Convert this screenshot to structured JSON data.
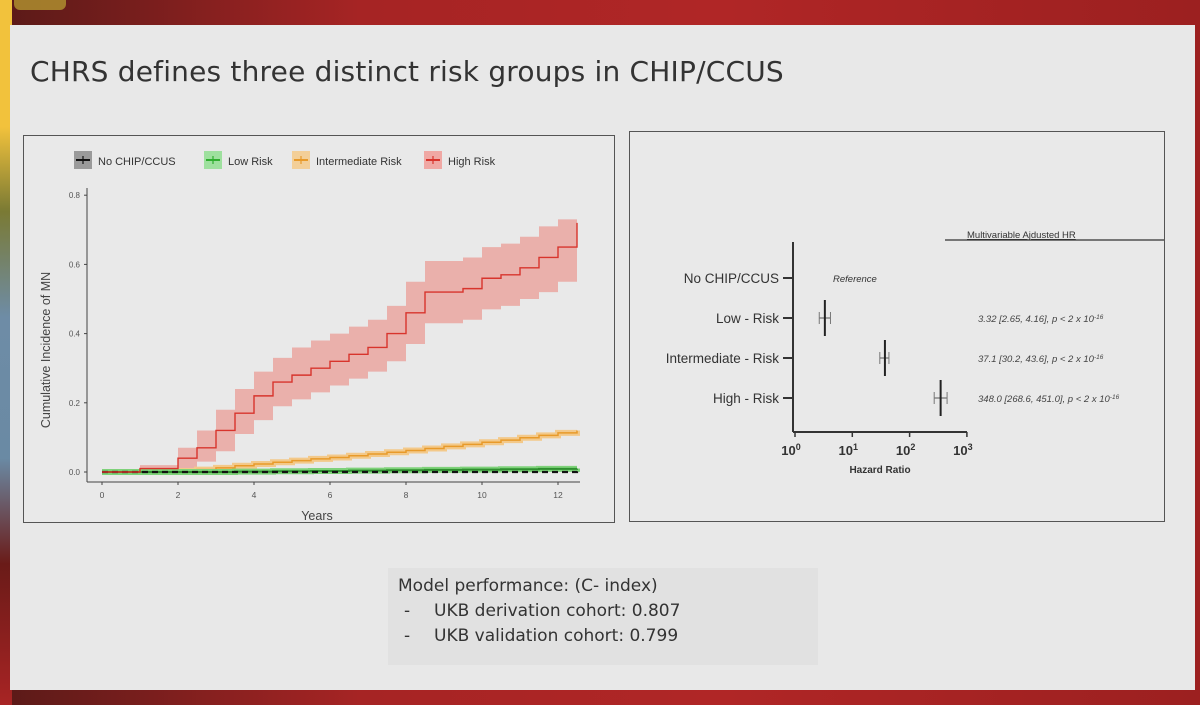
{
  "slide": {
    "title": "CHRS defines three distinct risk groups in CHIP/CCUS",
    "colors": {
      "header_band": "#a62424",
      "slide_bg": "#e8e8e8",
      "no_chip": "#111111",
      "low_risk": "#2fae2f",
      "intermediate_risk": "#e89a2a",
      "high_risk": "#d8342c",
      "high_risk_band": "#eaa6a0"
    }
  },
  "km_chart": {
    "legend": [
      {
        "label": "No CHIP/CCUS",
        "color": "#111111",
        "swatch": "#9a9a9a"
      },
      {
        "label": "Low Risk",
        "color": "#2fae2f",
        "swatch": "#9ee09e"
      },
      {
        "label": "Intermediate Risk",
        "color": "#e89a2a",
        "swatch": "#f3cf98"
      },
      {
        "label": "High Risk",
        "color": "#d8342c",
        "swatch": "#f0a8a4"
      }
    ],
    "xlabel": "Years",
    "ylabel": "Cumulative Incidence of MN",
    "xticks": [
      "0",
      "2",
      "4",
      "6",
      "8",
      "10",
      "12"
    ],
    "yticks": [
      "0.0",
      "0.2",
      "0.4",
      "0.6",
      "0.8"
    ]
  },
  "forest": {
    "header": "Multivariable Ajdusted HR",
    "reference_label": "Reference",
    "xlabel": "Hazard Ratio",
    "xticks": [
      {
        "base": "10",
        "exp": "0"
      },
      {
        "base": "10",
        "exp": "1"
      },
      {
        "base": "10",
        "exp": "2"
      },
      {
        "base": "10",
        "exp": "3"
      }
    ],
    "rows": [
      {
        "label": "No CHIP/CCUS",
        "hr_text": ""
      },
      {
        "label": "Low - Risk",
        "hr_text": "3.32 [2.65, 4.16], p <  2 x 10",
        "p_exp": "-16"
      },
      {
        "label": "Intermediate - Risk",
        "hr_text": "37.1 [30.2, 43.6], p < 2 x 10",
        "p_exp": "-16"
      },
      {
        "label": "High - Risk",
        "hr_text": "348.0 [268.6, 451.0], p < 2 x 10",
        "p_exp": "-16"
      }
    ]
  },
  "performance": {
    "heading": "Model performance: (C- index)",
    "items": [
      {
        "bullet": "-",
        "text": "UKB derivation cohort: 0.807"
      },
      {
        "bullet": "-",
        "text": "UKB validation cohort: 0.799"
      }
    ]
  },
  "chart_data": [
    {
      "type": "line",
      "title": "",
      "xlabel": "Years",
      "ylabel": "Cumulative Incidence of MN",
      "xlim": [
        0,
        12.5
      ],
      "ylim": [
        0,
        0.8
      ],
      "grid": false,
      "legend_position": "top",
      "x": [
        0,
        1,
        1.8,
        2,
        2.5,
        3,
        3.5,
        4,
        4.5,
        5,
        5.5,
        6,
        6.5,
        7,
        7.5,
        8,
        8.5,
        9,
        9.5,
        10,
        10.5,
        11,
        11.5,
        12,
        12.5
      ],
      "series": [
        {
          "name": "No CHIP/CCUS",
          "values": [
            0,
            0,
            0,
            0,
            0,
            0,
            0,
            0,
            0,
            0,
            0,
            0,
            0,
            0,
            0,
            0,
            0,
            0,
            0,
            0,
            0,
            0,
            0,
            0,
            0.002
          ]
        },
        {
          "name": "Low Risk",
          "values": [
            0,
            0,
            0,
            0,
            0,
            0,
            0.001,
            0.001,
            0.002,
            0.002,
            0.003,
            0.003,
            0.004,
            0.004,
            0.005,
            0.005,
            0.006,
            0.006,
            0.007,
            0.007,
            0.008,
            0.008,
            0.009,
            0.009,
            0.01
          ]
        },
        {
          "name": "Intermediate Risk",
          "values": [
            0,
            0,
            0,
            0.003,
            0.007,
            0.012,
            0.018,
            0.023,
            0.028,
            0.033,
            0.038,
            0.042,
            0.047,
            0.052,
            0.057,
            0.062,
            0.068,
            0.074,
            0.08,
            0.086,
            0.092,
            0.099,
            0.106,
            0.113,
            0.12
          ]
        },
        {
          "name": "High Risk",
          "values": [
            0,
            0.01,
            0.01,
            0.04,
            0.07,
            0.12,
            0.17,
            0.22,
            0.26,
            0.28,
            0.3,
            0.32,
            0.34,
            0.36,
            0.4,
            0.46,
            0.52,
            0.52,
            0.53,
            0.56,
            0.57,
            0.59,
            0.62,
            0.65,
            0.72
          ]
        },
        {
          "name": "High Risk CI lower",
          "values": [
            0,
            0,
            0,
            0.01,
            0.03,
            0.06,
            0.11,
            0.15,
            0.19,
            0.21,
            0.23,
            0.25,
            0.27,
            0.29,
            0.32,
            0.37,
            0.43,
            0.43,
            0.44,
            0.47,
            0.48,
            0.5,
            0.52,
            0.55,
            0.58
          ]
        },
        {
          "name": "High Risk CI upper",
          "values": [
            0,
            0.02,
            0.02,
            0.07,
            0.12,
            0.18,
            0.24,
            0.29,
            0.33,
            0.36,
            0.38,
            0.4,
            0.42,
            0.44,
            0.48,
            0.55,
            0.61,
            0.61,
            0.62,
            0.65,
            0.66,
            0.68,
            0.71,
            0.73,
            0.78
          ]
        }
      ]
    },
    {
      "type": "scatter",
      "title": "Multivariable Ajdusted HR",
      "xlabel": "Hazard Ratio",
      "xscale": "log10",
      "xlim": [
        1,
        1000
      ],
      "categories": [
        "No CHIP/CCUS",
        "Low - Risk",
        "Intermediate - Risk",
        "High - Risk"
      ],
      "hr": [
        1,
        3.32,
        37.1,
        348.0
      ],
      "ci_lower": [
        null,
        2.65,
        30.2,
        268.6
      ],
      "ci_upper": [
        null,
        4.16,
        43.6,
        451.0
      ],
      "p_values": [
        "Reference",
        "< 2 x 10^-16",
        "< 2 x 10^-16",
        "< 2 x 10^-16"
      ]
    }
  ]
}
